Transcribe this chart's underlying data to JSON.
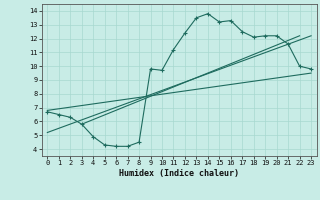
{
  "xlabel": "Humidex (Indice chaleur)",
  "xlim": [
    -0.5,
    23.5
  ],
  "ylim": [
    3.5,
    14.5
  ],
  "xticks": [
    0,
    1,
    2,
    3,
    4,
    5,
    6,
    7,
    8,
    9,
    10,
    11,
    12,
    13,
    14,
    15,
    16,
    17,
    18,
    19,
    20,
    21,
    22,
    23
  ],
  "yticks": [
    4,
    5,
    6,
    7,
    8,
    9,
    10,
    11,
    12,
    13,
    14
  ],
  "bg_color": "#c8ece6",
  "line_color": "#1e6b5e",
  "grid_color": "#a8d8d0",
  "curve_x": [
    0,
    1,
    2,
    3,
    4,
    5,
    6,
    7,
    8,
    9,
    10,
    11,
    12,
    13,
    14,
    15,
    16,
    17,
    18,
    19,
    20,
    21,
    22,
    23
  ],
  "curve_y": [
    6.7,
    6.5,
    6.3,
    5.8,
    4.9,
    4.3,
    4.2,
    4.2,
    4.5,
    9.8,
    9.7,
    11.2,
    12.4,
    13.5,
    13.8,
    13.2,
    13.3,
    12.5,
    12.1,
    12.2,
    12.2,
    11.6,
    10.0,
    9.8
  ],
  "line1_x": [
    0,
    23
  ],
  "line1_y": [
    5.2,
    12.2
  ],
  "line2_x": [
    0,
    23
  ],
  "line2_y": [
    6.8,
    9.5
  ],
  "line3_x": [
    3,
    22
  ],
  "line3_y": [
    5.8,
    12.2
  ]
}
